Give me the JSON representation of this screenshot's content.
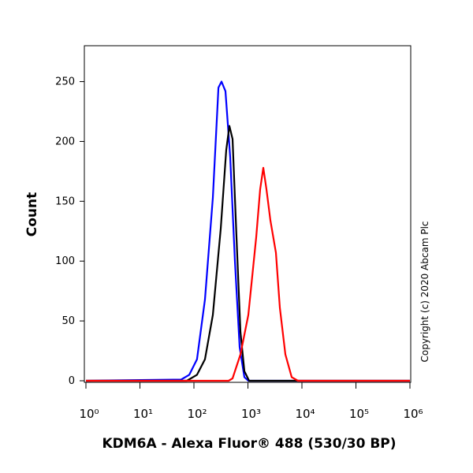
{
  "chart_data": {
    "type": "line",
    "x_label": "KDM6A - Alexa Fluor® 488 (530/30 BP)",
    "y_label": "Count",
    "annotation": "Copyright (c) 2020 Abcam Plc",
    "x_scale": "log",
    "xlim": [
      1,
      1000000
    ],
    "xticks": [
      {
        "value": 1,
        "label": "10⁰"
      },
      {
        "value": 10,
        "label": "10¹"
      },
      {
        "value": 100,
        "label": "10²"
      },
      {
        "value": 1000,
        "label": "10³"
      },
      {
        "value": 10000,
        "label": "10⁴"
      },
      {
        "value": 100000,
        "label": "10⁵"
      },
      {
        "value": 1000000,
        "label": "10⁶"
      }
    ],
    "ylim": [
      0,
      280
    ],
    "yticks": [
      0,
      50,
      100,
      150,
      200,
      250
    ],
    "series": [
      {
        "color": "#0000ff",
        "x": [
          1,
          58,
          82,
          114,
          160,
          224,
          284,
          324,
          384,
          470,
          574,
          703,
          859,
          1017,
          1000000
        ],
        "values": [
          0,
          1,
          5,
          18,
          68,
          153,
          245,
          250,
          242,
          187,
          100,
          28,
          3,
          0,
          0
        ]
      },
      {
        "color": "#000000",
        "x": [
          1,
          74,
          114,
          160,
          224,
          314,
          397,
          454,
          519,
          614,
          727,
          859,
          1052,
          1000000
        ],
        "values": [
          0,
          0,
          5,
          18,
          55,
          127,
          193,
          213,
          202,
          120,
          41,
          8,
          0,
          0
        ]
      },
      {
        "color": "#ff0000",
        "x": [
          1,
          439,
          519,
          727,
          1017,
          1423,
          1684,
          1927,
          2205,
          2606,
          3297,
          3898,
          4933,
          6457,
          8450,
          1000000
        ],
        "values": [
          0,
          0,
          2,
          22,
          55,
          120,
          160,
          178,
          160,
          134,
          107,
          61,
          22,
          3,
          0,
          0
        ]
      }
    ]
  }
}
